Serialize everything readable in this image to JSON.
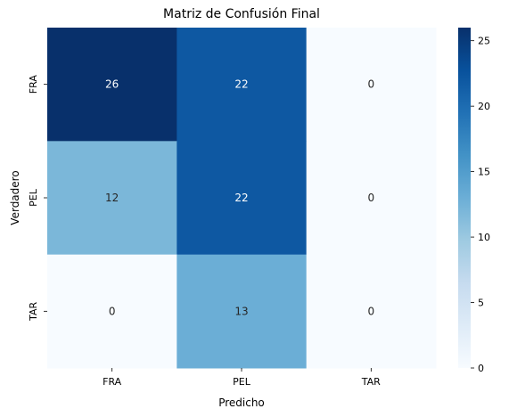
{
  "chart_data": {
    "type": "heatmap",
    "title": "Matriz de Confusión Final",
    "xlabel": "Predicho",
    "ylabel": "Verdadero",
    "x_categories": [
      "FRA",
      "PEL",
      "TAR"
    ],
    "y_categories": [
      "FRA",
      "PEL",
      "TAR"
    ],
    "values": [
      [
        26,
        22,
        0
      ],
      [
        12,
        22,
        0
      ],
      [
        0,
        13,
        0
      ]
    ],
    "colormap": "Blues",
    "colorbar": {
      "min": 0,
      "max": 26,
      "ticks": [
        0,
        5,
        10,
        15,
        20,
        25
      ]
    },
    "annotations": true
  }
}
